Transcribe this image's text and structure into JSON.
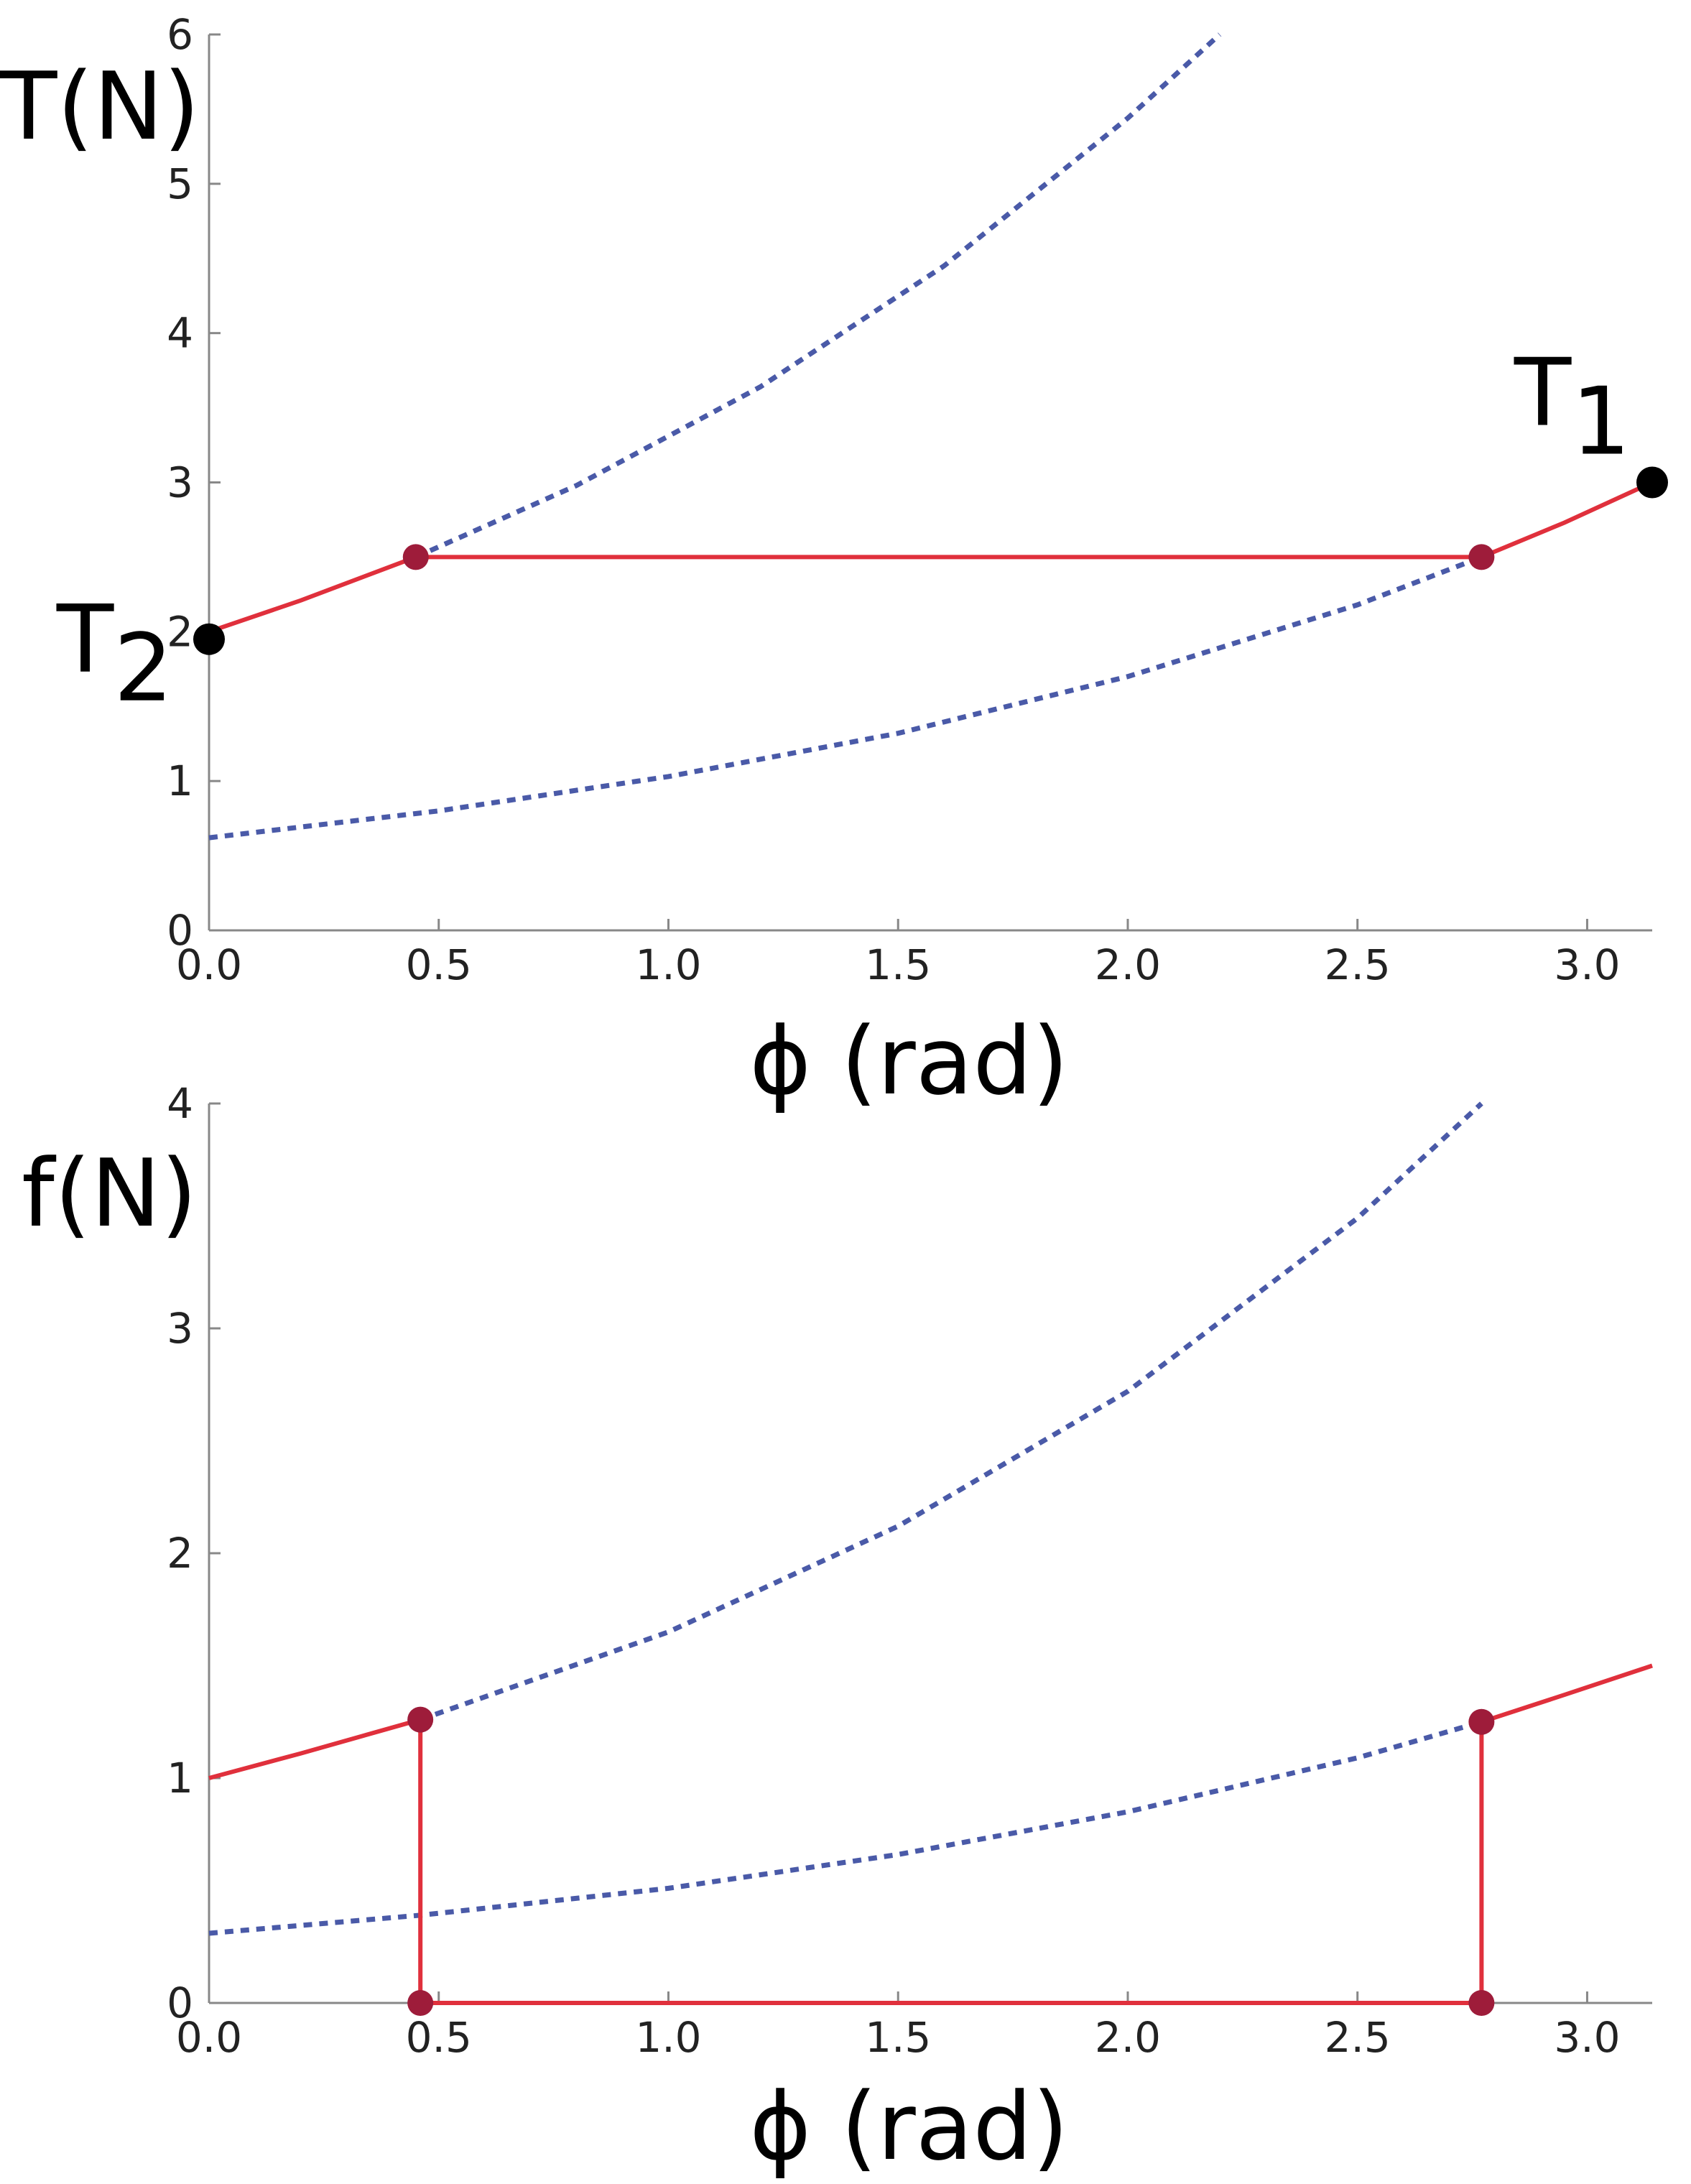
{
  "chart_data": [
    {
      "type": "line",
      "ylabel": "T(N)",
      "xlabel": "ϕ (rad)",
      "xlim": [
        0,
        3.1416
      ],
      "ylim": [
        0,
        6
      ],
      "xticks": [
        {
          "value": 0,
          "label": "0.0"
        },
        0.5,
        {
          "value": 1,
          "label": "1.0"
        },
        1.5,
        {
          "value": 2,
          "label": "2.0"
        },
        2.5,
        {
          "value": 3,
          "label": "3.0"
        }
      ],
      "yticks": [
        0,
        1,
        2,
        3,
        4,
        5,
        6
      ],
      "series": [
        {
          "color": "#4a5aa8",
          "style": "dashed",
          "x": [
            0.45,
            0.8,
            1.2,
            1.6,
            2.0,
            2.2
          ],
          "values": [
            2.5,
            2.98,
            3.64,
            4.45,
            5.44,
            6.0
          ]
        },
        {
          "color": "#4a5aa8",
          "style": "dashed",
          "x": [
            0,
            0.5,
            1.0,
            1.5,
            2.0,
            2.5,
            2.77
          ],
          "values": [
            0.62,
            0.8,
            1.03,
            1.32,
            1.7,
            2.18,
            2.5
          ]
        },
        {
          "color": "#e0303c",
          "style": "solid",
          "x": [
            0,
            0.2,
            0.45,
            2.77,
            2.95,
            3.1416
          ],
          "values": [
            2,
            2.21,
            2.5,
            2.5,
            2.73,
            3.0
          ]
        },
        {
          "color": "#9e1c3a",
          "style": "markers",
          "x": [
            0.45,
            2.77
          ],
          "values": [
            2.5,
            2.5
          ]
        }
      ],
      "annotations": [
        {
          "text": "T",
          "sub": "2",
          "x": 0,
          "y": 1.95,
          "color": "#000000",
          "position": "left"
        },
        {
          "text": "T",
          "sub": "1",
          "x": 3.1416,
          "y": 3.0,
          "color": "#000000",
          "position": "above"
        }
      ]
    },
    {
      "type": "line",
      "ylabel": "f(N)",
      "xlabel": "ϕ (rad)",
      "xlim": [
        0,
        3.1416
      ],
      "ylim": [
        0,
        4
      ],
      "xticks": [
        {
          "value": 0,
          "label": "0.0"
        },
        0.5,
        {
          "value": 1,
          "label": "1.0"
        },
        1.5,
        {
          "value": 2,
          "label": "2.0"
        },
        2.5,
        {
          "value": 3,
          "label": "3.0"
        }
      ],
      "yticks": [
        0,
        1,
        2,
        3,
        4
      ],
      "series": [
        {
          "color": "#4a5aa8",
          "style": "dashed",
          "x": [
            0.46,
            1.0,
            1.5,
            2.0,
            2.5,
            2.77
          ],
          "values": [
            1.26,
            1.65,
            2.12,
            2.72,
            3.49,
            4.0
          ]
        },
        {
          "color": "#4a5aa8",
          "style": "dashed",
          "x": [
            0,
            0.46,
            1.0,
            1.5,
            2.0,
            2.5,
            2.77
          ],
          "values": [
            0.31,
            0.39,
            0.51,
            0.66,
            0.85,
            1.09,
            1.25
          ]
        },
        {
          "color": "#e0303c",
          "style": "solid",
          "x": [
            0,
            0.2,
            0.46,
            0.46,
            2.77,
            2.77,
            2.95,
            3.1416
          ],
          "values": [
            1,
            1.11,
            1.26,
            0,
            0,
            1.25,
            1.37,
            1.5
          ]
        },
        {
          "color": "#9e1c3a",
          "style": "markers",
          "x": [
            0.46,
            0.46,
            2.77,
            2.77
          ],
          "values": [
            1.26,
            0,
            0,
            1.25
          ]
        }
      ]
    }
  ]
}
